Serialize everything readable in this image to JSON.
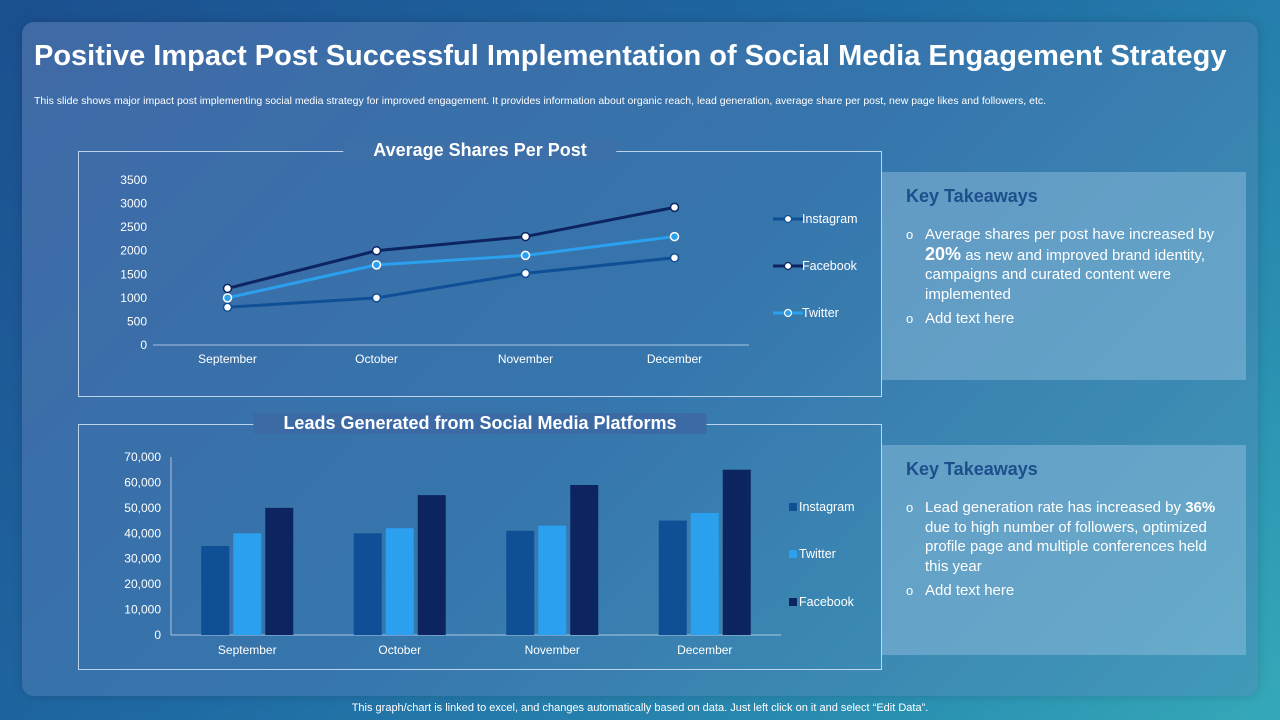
{
  "title": "Positive Impact Post Successful Implementation of Social Media Engagement Strategy",
  "subtitle": "This slide shows major impact post implementing social media strategy for improved engagement. It provides information about organic reach, lead generation, average share per post, new page likes and followers, etc.",
  "footer": "This graph/chart is linked to excel, and changes automatically based on data. Just left click on it and select “Edit Data”.",
  "colors": {
    "instagram": "#0e4f96",
    "facebook": "#0c2460",
    "twitter": "#2aa0ee",
    "heading": "#1d4f8c"
  },
  "chart_data": [
    {
      "type": "line",
      "title": "Average Shares Per Post",
      "categories": [
        "September",
        "October",
        "November",
        "December"
      ],
      "ylim": [
        0,
        3500
      ],
      "yticks": [
        "0",
        "500",
        "1000",
        "1500",
        "2000",
        "2500",
        "3000",
        "3500"
      ],
      "series": [
        {
          "name": "Instagram",
          "values": [
            800,
            1000,
            1520,
            1850
          ]
        },
        {
          "name": "Facebook",
          "values": [
            1200,
            2000,
            2300,
            2920
          ]
        },
        {
          "name": "Twitter",
          "values": [
            1000,
            1700,
            1900,
            2300
          ]
        }
      ],
      "legend": "right"
    },
    {
      "type": "bar",
      "title": "Leads Generated from Social Media Platforms",
      "categories": [
        "September",
        "October",
        "November",
        "December"
      ],
      "ylim": [
        0,
        70000
      ],
      "yticks": [
        "0",
        "10,000",
        "20,000",
        "30,000",
        "40,000",
        "50,000",
        "60,000",
        "70,000"
      ],
      "series": [
        {
          "name": "Instagram",
          "values": [
            35000,
            40000,
            41000,
            45000
          ]
        },
        {
          "name": "Twitter",
          "values": [
            40000,
            42000,
            43000,
            48000
          ]
        },
        {
          "name": "Facebook",
          "values": [
            50000,
            55000,
            59000,
            65000
          ]
        }
      ],
      "legend": "right"
    }
  ],
  "takeaways": [
    {
      "heading": "Key Takeaways",
      "bullet": "o",
      "item1_pre": "Average shares per post have increased by",
      "item1_em": "20%",
      "item1_post": "as new and improved brand identity, campaigns and curated content were implemented",
      "item2": "Add text here"
    },
    {
      "heading": "Key Takeaways",
      "bullet": "o",
      "item1_pre": "Lead generation rate has increased  by",
      "item1_em": "36%",
      "item1_post": "due to high number of followers, optimized profile page and multiple conferences held this year",
      "item2": "Add text here"
    }
  ]
}
